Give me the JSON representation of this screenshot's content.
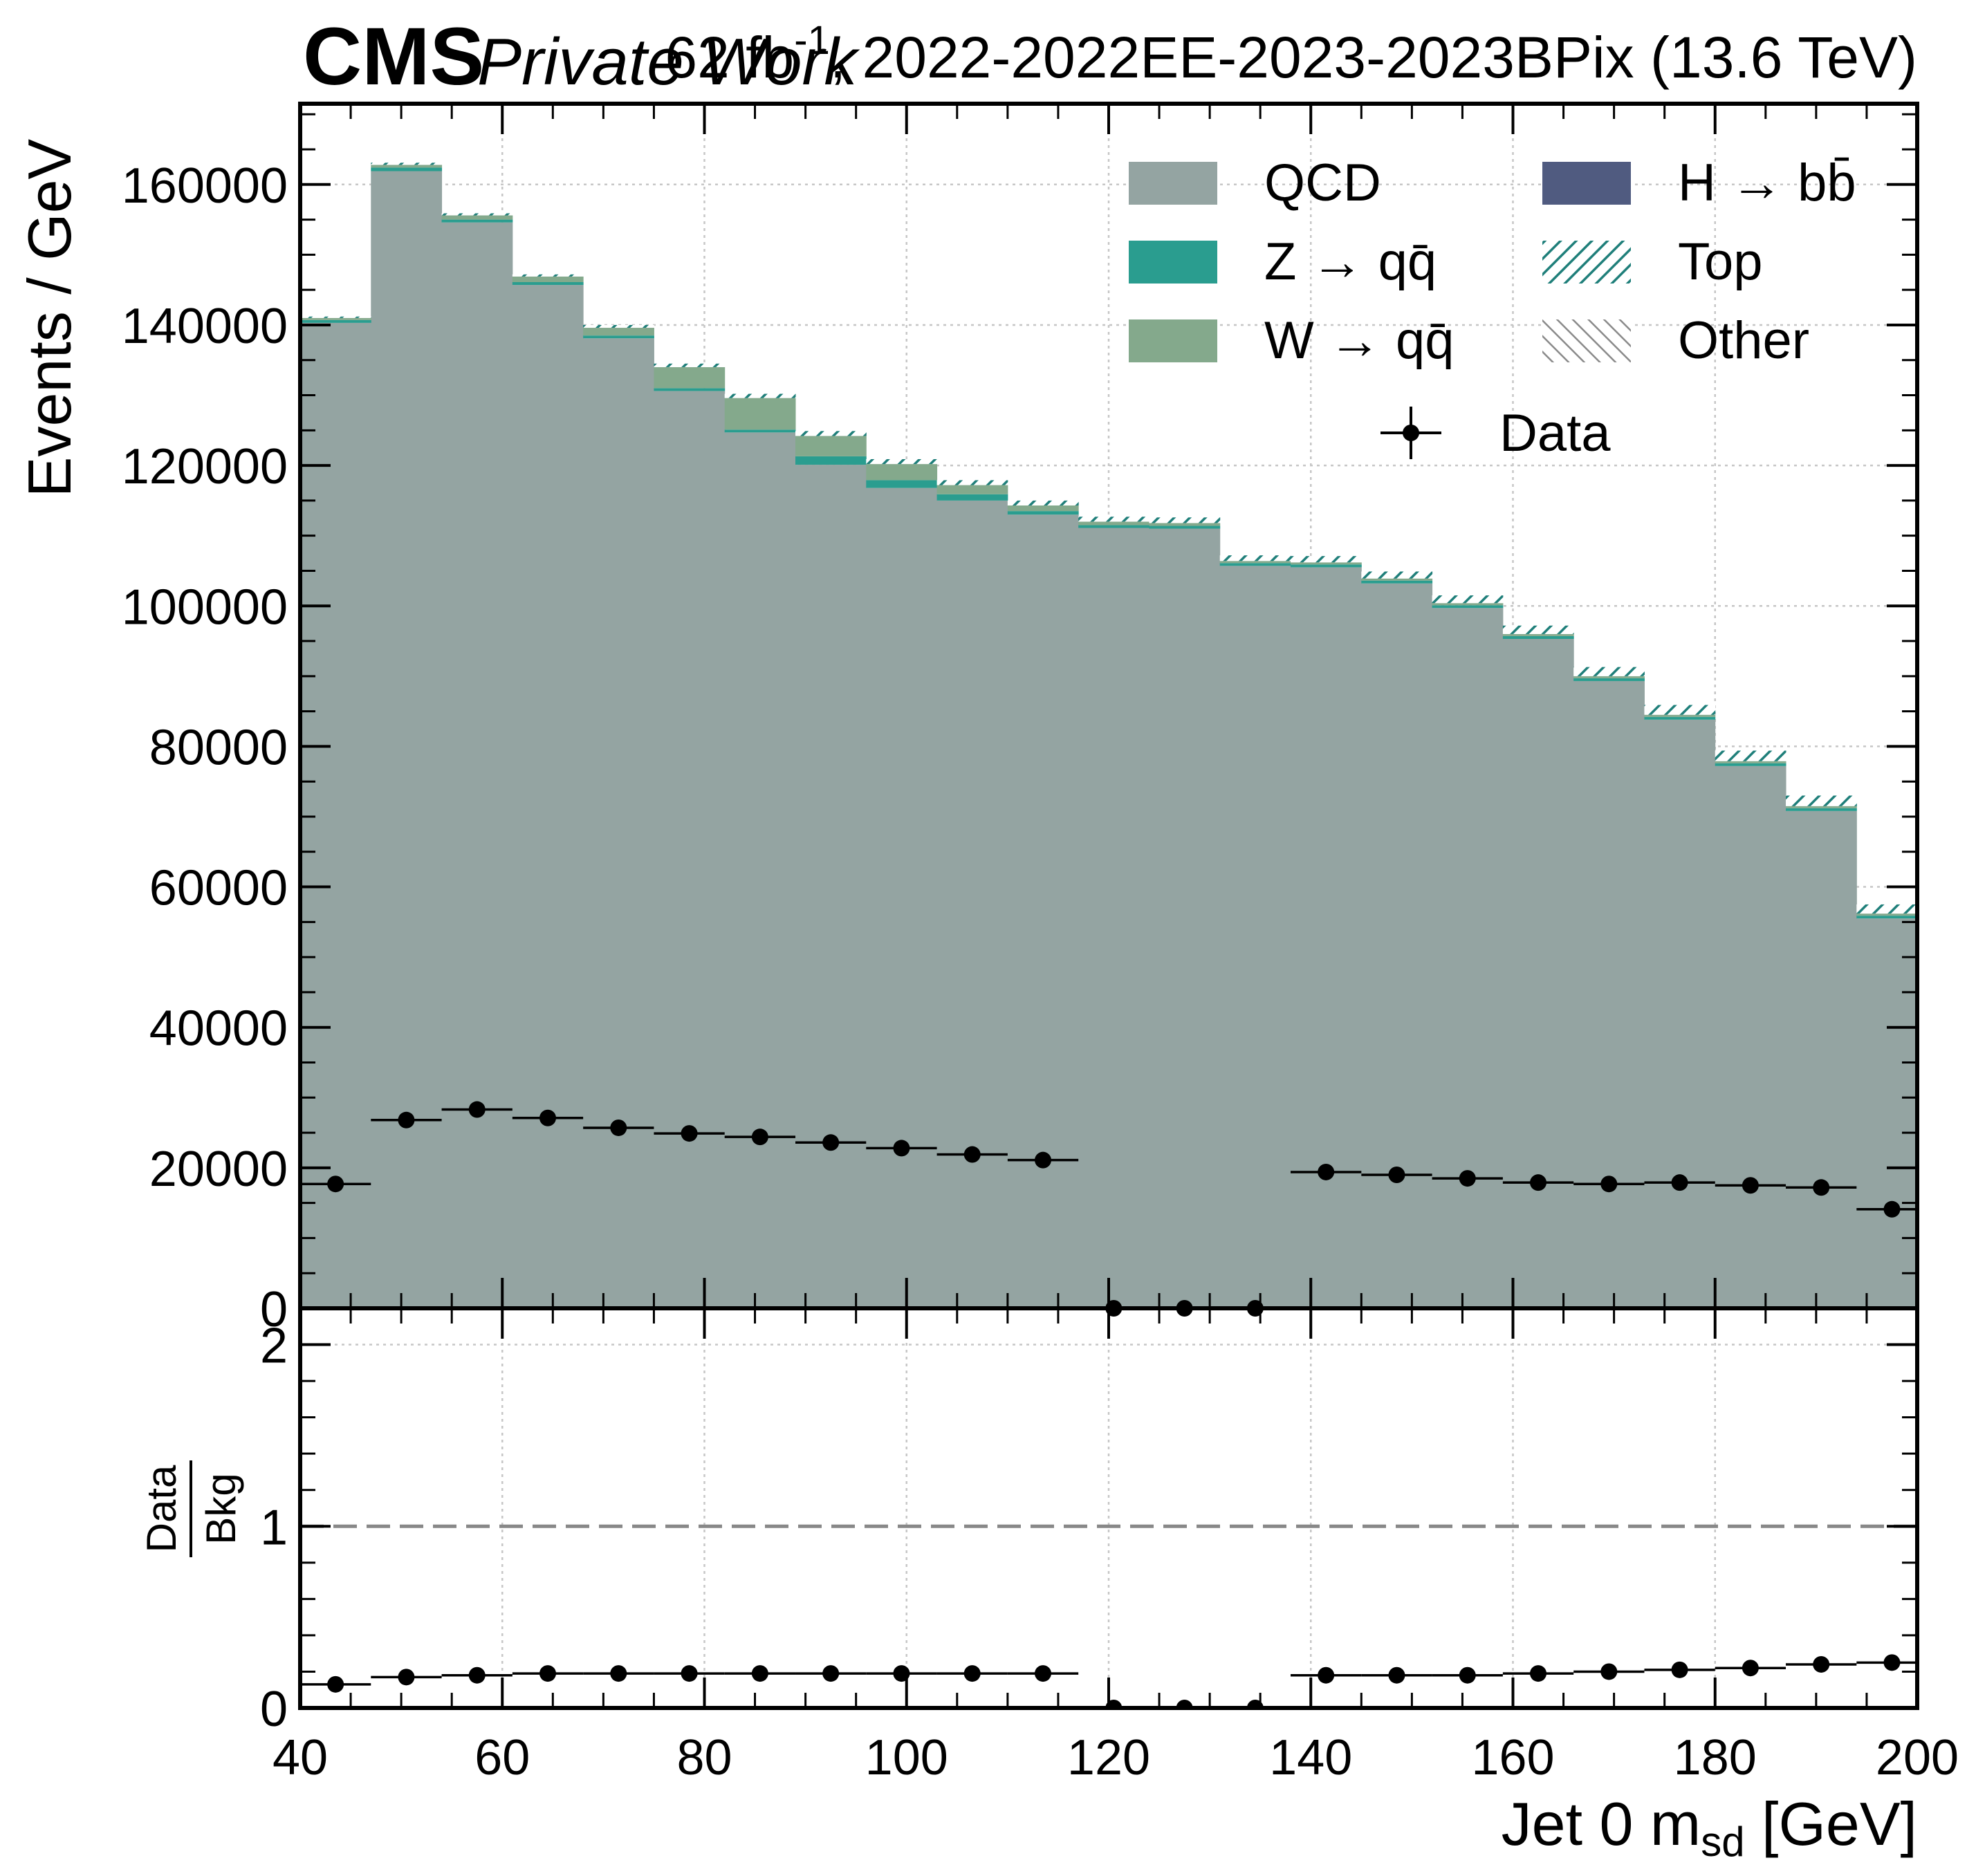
{
  "header": {
    "cms_label": "CMS",
    "extra_label": "Private Work",
    "lumi_text": "62 fb",
    "lumi_superscript": "-1",
    "lumi_suffix": ", 2022-2022EE-2023-2023BPix (13.6 TeV)"
  },
  "chart_data": {
    "type": "bar",
    "subtype": "stacked-histogram-with-ratio",
    "xlabel_main": "Jet 0 m",
    "xlabel_sub": "sd",
    "xlabel_unit": " [GeV]",
    "ylabel": "Events / GeV",
    "ratio_ylabel_num": "Data",
    "ratio_ylabel_den": "Bkg",
    "xlim": [
      40,
      200
    ],
    "ylim": [
      0,
      171500
    ],
    "ratio_ylim": [
      0,
      2.2
    ],
    "grid": true,
    "legend_position": "top-right",
    "x_ticks": [
      "40",
      "60",
      "80",
      "100",
      "120",
      "140",
      "160",
      "180",
      "200"
    ],
    "y_ticks": [
      "0",
      "20000",
      "40000",
      "60000",
      "80000",
      "100000",
      "120000",
      "140000",
      "160000"
    ],
    "ratio_ticks": [
      "0",
      "1",
      "2"
    ],
    "bin_edges": [
      40,
      47,
      54,
      61,
      68,
      75,
      82,
      89,
      96,
      103,
      110,
      117,
      124,
      131,
      138,
      145,
      152,
      159,
      166,
      173,
      180,
      187,
      194,
      201
    ],
    "series": [
      {
        "name": "QCD",
        "color": "#94a4a2",
        "kind": "fill",
        "values": [
          140300,
          161900,
          154600,
          145700,
          138100,
          130600,
          124700,
          120100,
          116800,
          115000,
          113000,
          111100,
          111000,
          105700,
          105500,
          103200,
          99700,
          95300,
          89300,
          83800,
          77200,
          70800,
          55500
        ]
      },
      {
        "name": "Z → qq̄",
        "color": "#2a9d8f",
        "kind": "fill",
        "values": [
          400,
          500,
          400,
          400,
          400,
          400,
          400,
          1200,
          1100,
          900,
          500,
          400,
          400,
          400,
          400,
          400,
          400,
          400,
          400,
          400,
          400,
          400,
          400
        ]
      },
      {
        "name": "W → qq̄",
        "color": "#84a98c",
        "kind": "fill",
        "values": [
          300,
          400,
          600,
          800,
          1100,
          3000,
          4500,
          2900,
          2300,
          1300,
          800,
          500,
          400,
          300,
          300,
          300,
          300,
          300,
          300,
          300,
          300,
          300,
          300
        ]
      },
      {
        "name": "H → bb̄",
        "color": "#505b80",
        "kind": "fill",
        "values": [
          0,
          0,
          0,
          0,
          0,
          0,
          0,
          0,
          0,
          0,
          0,
          0,
          0,
          0,
          0,
          0,
          0,
          0,
          0,
          0,
          0,
          0,
          0
        ]
      },
      {
        "name": "Top",
        "color": "#1f7f7a",
        "kind": "hatch",
        "values": [
          200,
          300,
          300,
          300,
          400,
          500,
          600,
          700,
          700,
          700,
          700,
          700,
          800,
          800,
          900,
          1000,
          1100,
          1200,
          1300,
          1400,
          1500,
          1500,
          1300
        ]
      },
      {
        "name": "Other",
        "color": "#8a8a8a",
        "kind": "hatch",
        "values": [
          0,
          0,
          0,
          0,
          0,
          0,
          0,
          0,
          0,
          0,
          0,
          0,
          0,
          0,
          0,
          0,
          0,
          0,
          0,
          0,
          0,
          0,
          0
        ]
      }
    ],
    "data": {
      "name": "Data",
      "x": [
        43.5,
        50.5,
        57.5,
        64.5,
        71.5,
        78.5,
        85.5,
        92.5,
        99.5,
        106.5,
        113.5,
        120.5,
        127.5,
        134.5,
        141.5,
        148.5,
        155.5,
        162.5,
        169.5,
        176.5,
        183.5,
        190.5,
        197.5
      ],
      "values": [
        17700,
        26800,
        28300,
        27100,
        25700,
        24900,
        24400,
        23600,
        22800,
        21900,
        21100,
        0,
        0,
        0,
        19400,
        19000,
        18500,
        17900,
        17700,
        17900,
        17500,
        17200,
        14100
      ]
    },
    "ratio": {
      "reference_line": 1,
      "values": [
        0.13,
        0.17,
        0.18,
        0.19,
        0.19,
        0.19,
        0.19,
        0.19,
        0.19,
        0.19,
        0.19,
        0,
        0,
        0,
        0.18,
        0.18,
        0.18,
        0.19,
        0.2,
        0.21,
        0.22,
        0.24,
        0.25
      ]
    }
  }
}
